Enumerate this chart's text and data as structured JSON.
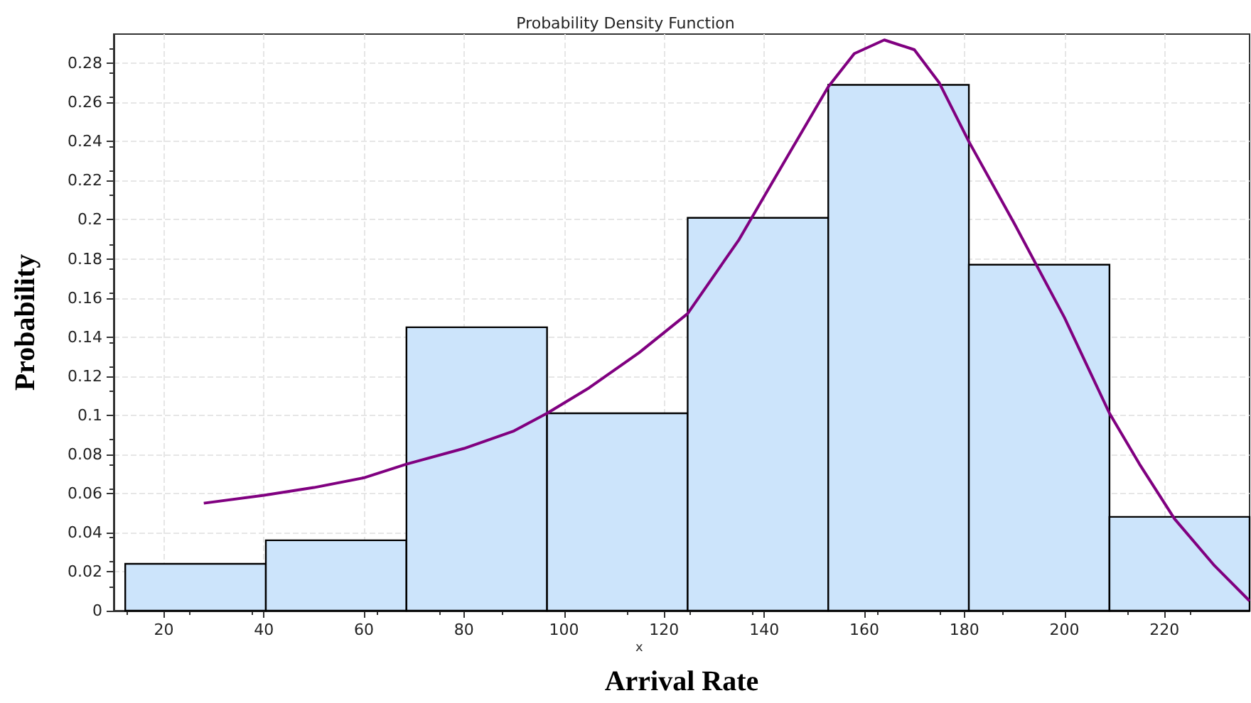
{
  "chart_data": {
    "type": "histogram",
    "title": "Probability Density Function",
    "xlabel": "Arrival Rate",
    "ylabel": "Probability",
    "annotations": [
      "x"
    ],
    "xlim": [
      10,
      237
    ],
    "xticks": [
      20,
      40,
      60,
      80,
      100,
      120,
      140,
      160,
      180,
      200,
      220
    ],
    "ylim": [
      0,
      0.295
    ],
    "yticks": [
      0,
      0.02,
      0.04,
      0.06,
      0.08,
      0.1,
      0.12,
      0.14,
      0.16,
      0.18,
      0.2,
      0.22,
      0.24,
      0.26,
      0.28
    ],
    "grid": true,
    "series": [
      {
        "color": "#cce4fb",
        "bins": [
          12.3,
          40.4,
          68.5,
          96.6,
          124.7,
          152.8,
          180.9,
          209,
          237
        ],
        "values": [
          0.024,
          0.036,
          0.145,
          0.101,
          0.201,
          0.269,
          0.177,
          0.048
        ]
      },
      {
        "type": "line",
        "color": "#800080",
        "x": [
          28,
          40,
          50,
          60,
          68.5,
          80,
          90,
          96.6,
          105,
          115,
          124.7,
          135,
          145,
          152.8,
          158,
          164,
          170,
          175,
          180.9,
          190,
          200,
          209,
          215,
          222,
          230,
          237
        ],
        "values": [
          0.055,
          0.059,
          0.063,
          0.068,
          0.075,
          0.083,
          0.092,
          0.101,
          0.114,
          0.132,
          0.152,
          0.19,
          0.234,
          0.268,
          0.285,
          0.292,
          0.287,
          0.27,
          0.24,
          0.198,
          0.15,
          0.101,
          0.075,
          0.047,
          0.023,
          0.005
        ]
      }
    ]
  }
}
